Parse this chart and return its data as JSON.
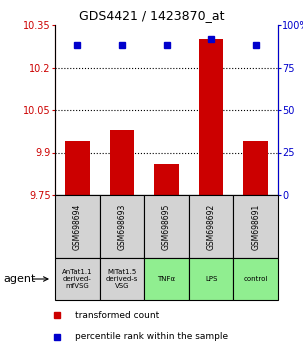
{
  "title": "GDS4421 / 1423870_at",
  "categories": [
    "GSM698694",
    "GSM698693",
    "GSM698695",
    "GSM698692",
    "GSM698691"
  ],
  "agent_labels": [
    "AnTat1.1\nderived-\nmfVSG",
    "MiTat1.5\nderived-s\nVSG",
    "TNFα",
    "LPS",
    "control"
  ],
  "agent_bg_colors": [
    "#d3d3d3",
    "#d3d3d3",
    "#90ee90",
    "#90ee90",
    "#90ee90"
  ],
  "bar_values": [
    9.94,
    9.98,
    9.86,
    10.3,
    9.94
  ],
  "percentile_values": [
    88,
    88,
    88,
    92,
    88
  ],
  "ylim_left": [
    9.75,
    10.35
  ],
  "ylim_right": [
    0,
    100
  ],
  "yticks_left": [
    9.75,
    9.9,
    10.05,
    10.2,
    10.35
  ],
  "yticks_right": [
    0,
    25,
    50,
    75,
    100
  ],
  "ytick_labels_left": [
    "9.75",
    "9.9",
    "10.05",
    "10.2",
    "10.35"
  ],
  "ytick_labels_right": [
    "0",
    "25",
    "50",
    "75",
    "100%"
  ],
  "bar_color": "#cc0000",
  "dot_color": "#0000cc",
  "label_color_left": "#cc0000",
  "label_color_right": "#0000cc",
  "gsm_box_color": "#d3d3d3",
  "legend_bar_label": "transformed count",
  "legend_dot_label": "percentile rank within the sample",
  "agent_text": "agent"
}
